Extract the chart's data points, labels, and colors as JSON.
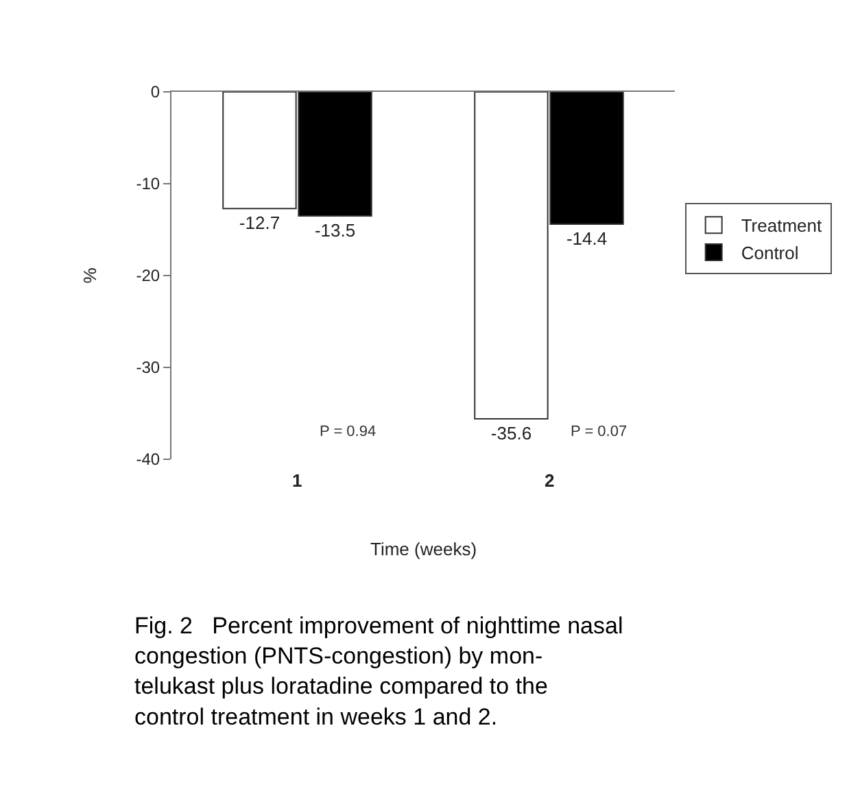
{
  "chart_data": {
    "type": "bar",
    "ylabel": "%",
    "xlabel": "Time (weeks)",
    "categories": [
      "1",
      "2"
    ],
    "series": [
      {
        "name": "Treatment",
        "color": "#ffffff",
        "values": [
          -12.7,
          -35.6
        ]
      },
      {
        "name": "Control",
        "color": "#000000",
        "values": [
          -13.5,
          -14.4
        ]
      }
    ],
    "ylim": [
      -40,
      0
    ],
    "yticks": [
      0,
      -10,
      -20,
      -30,
      -40
    ],
    "data_labels": true,
    "legend": "right",
    "annotations": [
      "P = 0.94",
      "P = 0.07",
      "Fig. 2   Percent improvement of nighttime nasal\ncongestion (PNTS-congestion) by mon-\ntelukast plus loratadine compared to the\ncontrol treatment in weeks 1 and 2."
    ]
  }
}
